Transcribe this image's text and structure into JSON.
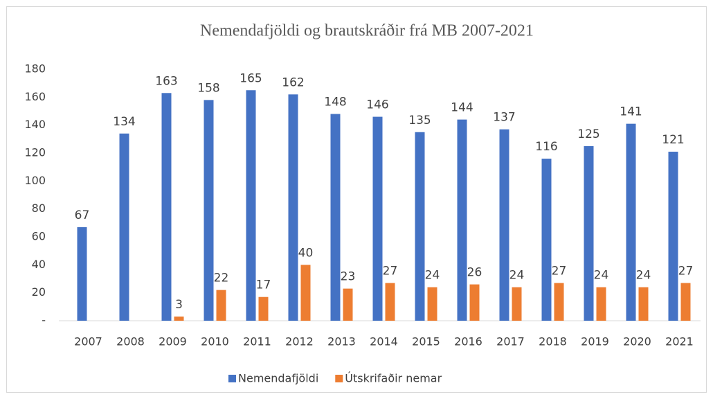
{
  "chart_data": {
    "type": "bar",
    "title": "Nemendafjöldi og brautskráðir frá MB 2007-2021",
    "categories": [
      "2007",
      "2008",
      "2009",
      "2010",
      "2011",
      "2012",
      "2013",
      "2014",
      "2015",
      "2016",
      "2017",
      "2018",
      "2019",
      "2020",
      "2021"
    ],
    "series": [
      {
        "name": "Nemendafjöldi",
        "color": "#4472c4",
        "values": [
          67,
          134,
          163,
          158,
          165,
          162,
          148,
          146,
          135,
          144,
          137,
          116,
          125,
          141,
          121
        ]
      },
      {
        "name": "Útskrifaðir nemar",
        "color": "#ed7d31",
        "values": [
          null,
          null,
          3,
          22,
          17,
          40,
          23,
          27,
          24,
          26,
          24,
          27,
          24,
          24,
          27
        ]
      }
    ],
    "ylim": [
      0,
      180
    ],
    "yticks": [
      {
        "value": 0,
        "label": "-"
      },
      20,
      40,
      60,
      80,
      100,
      120,
      140,
      160,
      180
    ],
    "grid": false,
    "legend": "bottom"
  }
}
